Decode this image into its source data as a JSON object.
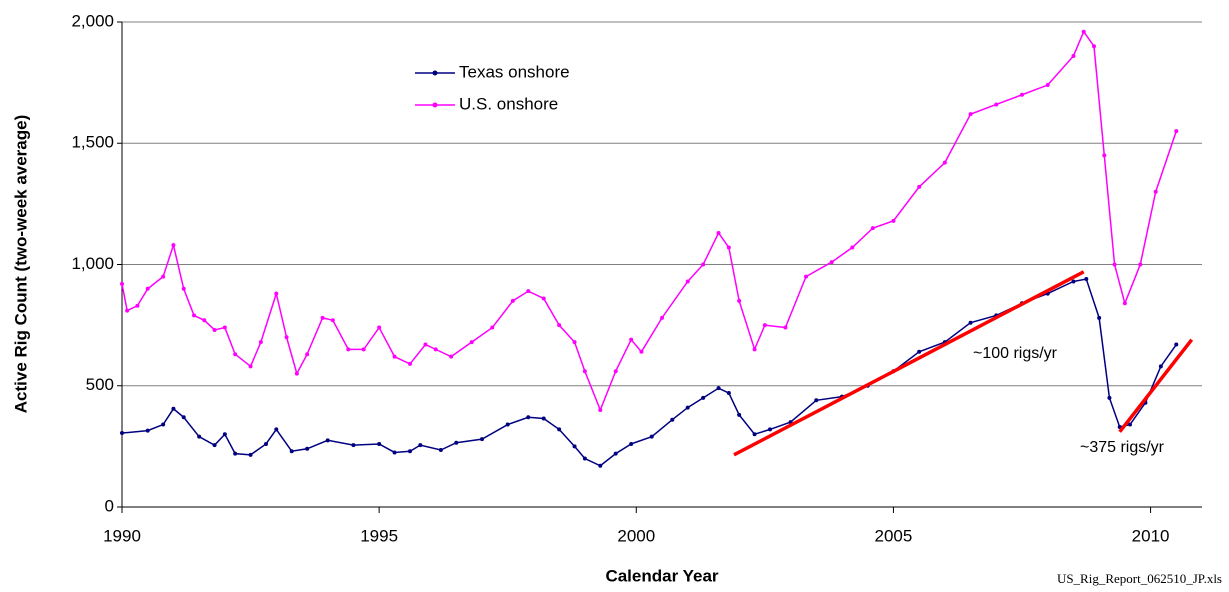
{
  "chart_data": {
    "type": "line",
    "ylabel": "Active Rig Count (two-week average)",
    "xlabel": "Calendar Year",
    "source": "US_Rig_Report_062510_JP.xls",
    "xlim": [
      1990,
      2011
    ],
    "xticks": [
      1990,
      1995,
      2000,
      2005,
      2010
    ],
    "ylim": [
      0,
      2000
    ],
    "yticks": [
      0,
      500,
      {
        "value": 1000,
        "label": "1,000"
      },
      {
        "value": 1500,
        "label": "1,500"
      },
      {
        "value": 2000,
        "label": "2,000"
      }
    ],
    "grid": true,
    "legend": "upper left",
    "series": [
      {
        "name": "Texas onshore",
        "color": "#000080",
        "x": [
          1990,
          1990.5,
          1990.8,
          1991.0,
          1991.2,
          1991.5,
          1991.8,
          1992.0,
          1992.2,
          1992.5,
          1992.8,
          1993.0,
          1993.3,
          1993.6,
          1994.0,
          1994.5,
          1995.0,
          1995.3,
          1995.6,
          1995.8,
          1996.2,
          1996.5,
          1997.0,
          1997.5,
          1997.9,
          1998.2,
          1998.5,
          1998.8,
          1999.0,
          1999.3,
          1999.6,
          1999.9,
          2000.3,
          2000.7,
          2001.0,
          2001.3,
          2001.6,
          2001.8,
          2002.0,
          2002.3,
          2002.6,
          2003.0,
          2003.5,
          2004.0,
          2004.5,
          2005.0,
          2005.5,
          2006.0,
          2006.5,
          2007.0,
          2007.5,
          2008.0,
          2008.5,
          2008.75,
          2009.0,
          2009.2,
          2009.4,
          2009.6,
          2009.9,
          2010.2,
          2010.5
        ],
        "values": [
          305,
          315,
          340,
          405,
          370,
          290,
          255,
          300,
          220,
          215,
          260,
          320,
          230,
          240,
          275,
          255,
          260,
          225,
          230,
          255,
          235,
          265,
          280,
          340,
          370,
          365,
          320,
          250,
          200,
          170,
          220,
          260,
          290,
          360,
          410,
          450,
          490,
          470,
          380,
          300,
          320,
          350,
          440,
          455,
          500,
          560,
          640,
          680,
          760,
          790,
          840,
          880,
          930,
          940,
          780,
          450,
          330,
          340,
          430,
          580,
          670
        ]
      },
      {
        "name": "U.S. onshore",
        "color": "#ff00ff",
        "x": [
          1990,
          1990.1,
          1990.3,
          1990.5,
          1990.8,
          1991.0,
          1991.2,
          1991.4,
          1991.6,
          1991.8,
          1992.0,
          1992.2,
          1992.5,
          1992.7,
          1993.0,
          1993.2,
          1993.4,
          1993.6,
          1993.9,
          1994.1,
          1994.4,
          1994.7,
          1995.0,
          1995.3,
          1995.6,
          1995.9,
          1996.1,
          1996.4,
          1996.8,
          1997.2,
          1997.6,
          1997.9,
          1998.2,
          1998.5,
          1998.8,
          1999.0,
          1999.3,
          1999.6,
          1999.9,
          2000.1,
          2000.5,
          2001.0,
          2001.3,
          2001.6,
          2001.8,
          2002.0,
          2002.3,
          2002.5,
          2002.9,
          2003.3,
          2003.8,
          2004.2,
          2004.6,
          2005.0,
          2005.5,
          2006.0,
          2006.5,
          2007.0,
          2007.5,
          2008.0,
          2008.5,
          2008.7,
          2008.9,
          2009.1,
          2009.3,
          2009.5,
          2009.8,
          2010.1,
          2010.5
        ],
        "values": [
          920,
          810,
          830,
          900,
          950,
          1080,
          900,
          790,
          770,
          730,
          740,
          630,
          580,
          680,
          880,
          700,
          550,
          630,
          780,
          770,
          650,
          650,
          740,
          620,
          590,
          670,
          650,
          620,
          680,
          740,
          850,
          890,
          860,
          750,
          680,
          560,
          400,
          560,
          690,
          640,
          780,
          930,
          1000,
          1130,
          1070,
          850,
          650,
          750,
          740,
          950,
          1010,
          1070,
          1150,
          1180,
          1320,
          1420,
          1620,
          1660,
          1700,
          1740,
          1860,
          1960,
          1900,
          1450,
          1000,
          840,
          1000,
          1300,
          1550
        ]
      }
    ],
    "trend_lines": [
      {
        "color": "#ff0000",
        "x": [
          2001.9,
          2008.7
        ],
        "values": [
          215,
          970
        ],
        "label": "~100 rigs/yr"
      },
      {
        "color": "#ff0000",
        "x": [
          2009.4,
          2010.8
        ],
        "values": [
          310,
          690
        ],
        "label": "~375 rigs/yr"
      }
    ]
  }
}
